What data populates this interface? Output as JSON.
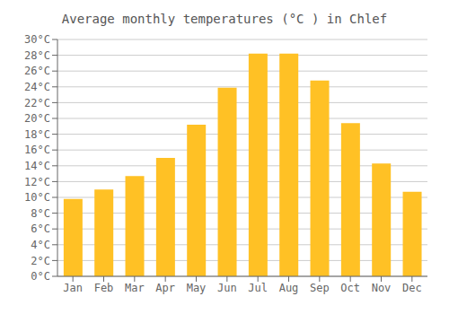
{
  "chart_data": {
    "type": "bar",
    "title": "Average monthly temperatures (°C ) in Chlef",
    "categories": [
      "Jan",
      "Feb",
      "Mar",
      "Apr",
      "May",
      "Jun",
      "Jul",
      "Aug",
      "Sep",
      "Oct",
      "Nov",
      "Dec"
    ],
    "values": [
      9.8,
      11.0,
      12.7,
      15.0,
      19.2,
      23.9,
      28.2,
      28.2,
      24.8,
      19.4,
      14.3,
      10.7
    ],
    "color": "#FFC125",
    "ylim": [
      0,
      30
    ],
    "yticks": [
      {
        "value": 0,
        "label": "0°C"
      },
      {
        "value": 2,
        "label": "2°C"
      },
      {
        "value": 4,
        "label": "4°C"
      },
      {
        "value": 6,
        "label": "6°C"
      },
      {
        "value": 8,
        "label": "8°C"
      },
      {
        "value": 10,
        "label": "10°C"
      },
      {
        "value": 12,
        "label": "12°C"
      },
      {
        "value": 14,
        "label": "14°C"
      },
      {
        "value": 16,
        "label": "16°C"
      },
      {
        "value": 18,
        "label": "18°C"
      },
      {
        "value": 20,
        "label": "20°C"
      },
      {
        "value": 22,
        "label": "22°C"
      },
      {
        "value": 24,
        "label": "24°C"
      },
      {
        "value": 26,
        "label": "26°C"
      },
      {
        "value": 28,
        "label": "28°C"
      },
      {
        "value": 30,
        "label": "30°C"
      }
    ],
    "grid": true
  }
}
